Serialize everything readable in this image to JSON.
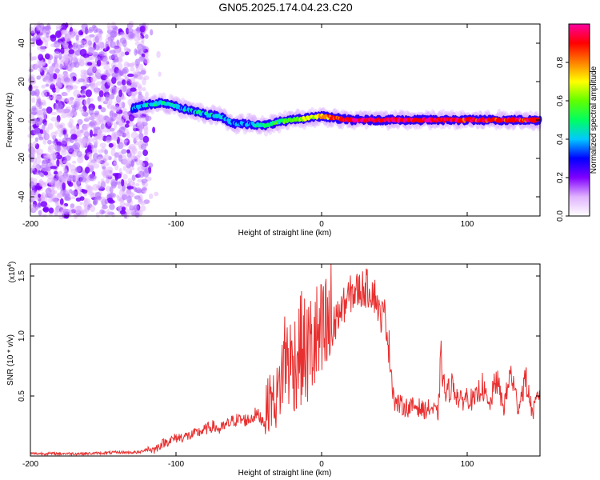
{
  "title": "GN05.2025.174.04.23.C20",
  "chart_data": [
    {
      "type": "heatmap",
      "xlabel": "Height of straight line (km)",
      "ylabel": "Frequency (Hz)",
      "xlim": [
        -200,
        150
      ],
      "ylim": [
        -50,
        50
      ],
      "xticks": [
        "-200",
        "-100",
        "0",
        "100"
      ],
      "yticks": [
        "-40",
        "-20",
        "0",
        "20",
        "40"
      ],
      "colorbar": {
        "label": "Normalized spectral amplitude",
        "range": [
          0,
          1
        ],
        "ticks": [
          "0.0",
          "0.2",
          "0.4",
          "0.6",
          "0.8"
        ],
        "colors": [
          "#ffffff",
          "#e0b3ff",
          "#8000ff",
          "#0000ff",
          "#00c8ff",
          "#00ff60",
          "#60ff00",
          "#ffff00",
          "#ff8000",
          "#ff0000",
          "#ff00a0"
        ]
      },
      "noise_region": {
        "x": [
          -200,
          -120
        ],
        "y": [
          -50,
          50
        ]
      },
      "trace": [
        {
          "x": -130,
          "y": 6,
          "amp": 0.35
        },
        {
          "x": -120,
          "y": 8,
          "amp": 0.4
        },
        {
          "x": -110,
          "y": 9,
          "amp": 0.45
        },
        {
          "x": -100,
          "y": 7,
          "amp": 0.4
        },
        {
          "x": -90,
          "y": 5,
          "amp": 0.4
        },
        {
          "x": -80,
          "y": 3,
          "amp": 0.4
        },
        {
          "x": -70,
          "y": 2,
          "amp": 0.4
        },
        {
          "x": -60,
          "y": -2,
          "amp": 0.35
        },
        {
          "x": -50,
          "y": -2,
          "amp": 0.4
        },
        {
          "x": -40,
          "y": -3,
          "amp": 0.45
        },
        {
          "x": -30,
          "y": -1,
          "amp": 0.5
        },
        {
          "x": -20,
          "y": 0,
          "amp": 0.55
        },
        {
          "x": -10,
          "y": 1,
          "amp": 0.65
        },
        {
          "x": 0,
          "y": 2,
          "amp": 0.75
        },
        {
          "x": 10,
          "y": 1,
          "amp": 0.85
        },
        {
          "x": 20,
          "y": 0,
          "amp": 0.95
        },
        {
          "x": 50,
          "y": 0,
          "amp": 0.95
        },
        {
          "x": 100,
          "y": 0,
          "amp": 0.92
        },
        {
          "x": 150,
          "y": 0,
          "amp": 0.9
        }
      ]
    },
    {
      "type": "line",
      "xlabel": "Height of straight line (km)",
      "ylabel": "SNR (10 * v/v)",
      "multiplier": "(x10",
      "multiplier_exp": "4",
      "multiplier_close": ")",
      "xlim": [
        -200,
        150
      ],
      "ylim": [
        0,
        1.6
      ],
      "xticks": [
        "-200",
        "-100",
        "0",
        "100"
      ],
      "yticks": [
        "0.5",
        "1.0",
        "1.5"
      ],
      "color": "#e83030",
      "series": [
        {
          "x": [
            -200,
            -180,
            -160,
            -140,
            -125,
            -120,
            -115,
            -110,
            -100,
            -90,
            -80,
            -75,
            -70,
            -60,
            -50,
            -45,
            -40,
            -35,
            -33,
            -30,
            -25,
            -20,
            -15,
            -10,
            -5,
            0,
            5,
            10,
            15,
            20,
            25,
            30,
            35,
            38,
            40,
            43,
            45,
            48,
            50,
            55,
            60,
            65,
            70,
            75,
            80,
            82,
            85,
            90,
            95,
            100,
            105,
            110,
            115,
            120,
            125,
            130,
            135,
            140,
            145,
            150
          ],
          "y": [
            0.02,
            0.02,
            0.02,
            0.03,
            0.03,
            0.06,
            0.05,
            0.1,
            0.15,
            0.17,
            0.22,
            0.25,
            0.22,
            0.3,
            0.3,
            0.35,
            0.3,
            0.5,
            0.45,
            0.5,
            0.85,
            0.75,
            0.9,
            0.85,
            0.95,
            0.95,
            1.05,
            1.15,
            1.25,
            1.35,
            1.38,
            1.4,
            1.38,
            1.3,
            1.15,
            1.2,
            1.05,
            0.7,
            0.45,
            0.42,
            0.4,
            0.42,
            0.38,
            0.4,
            0.35,
            0.82,
            0.5,
            0.6,
            0.45,
            0.5,
            0.45,
            0.6,
            0.4,
            0.65,
            0.4,
            0.7,
            0.4,
            0.65,
            0.35,
            0.55
          ]
        }
      ]
    }
  ]
}
